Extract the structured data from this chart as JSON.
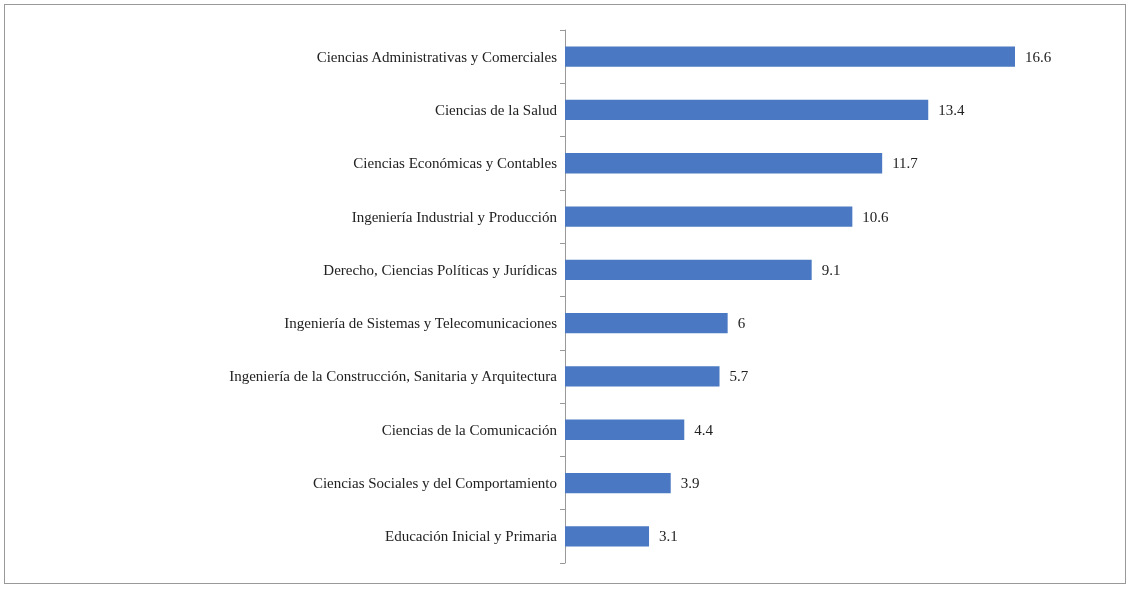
{
  "chart_data": {
    "type": "bar",
    "orientation": "horizontal",
    "categories": [
      "Ciencias Administrativas y Comerciales",
      "Ciencias de la Salud",
      "Ciencias Económicas y Contables",
      "Ingeniería Industrial y Producción",
      "Derecho, Ciencias Políticas y Jurídicas",
      "Ingeniería de Sistemas y Telecomunicaciones",
      "Ingeniería de la Construcción, Sanitaria y Arquitectura",
      "Ciencias de la Comunicación",
      "Ciencias Sociales y del Comportamiento",
      "Educación Inicial y Primaria"
    ],
    "values": [
      16.6,
      13.4,
      11.7,
      10.6,
      9.1,
      6,
      5.7,
      4.4,
      3.9,
      3.1
    ],
    "color": "#4a78c2",
    "data_labels": true
  }
}
